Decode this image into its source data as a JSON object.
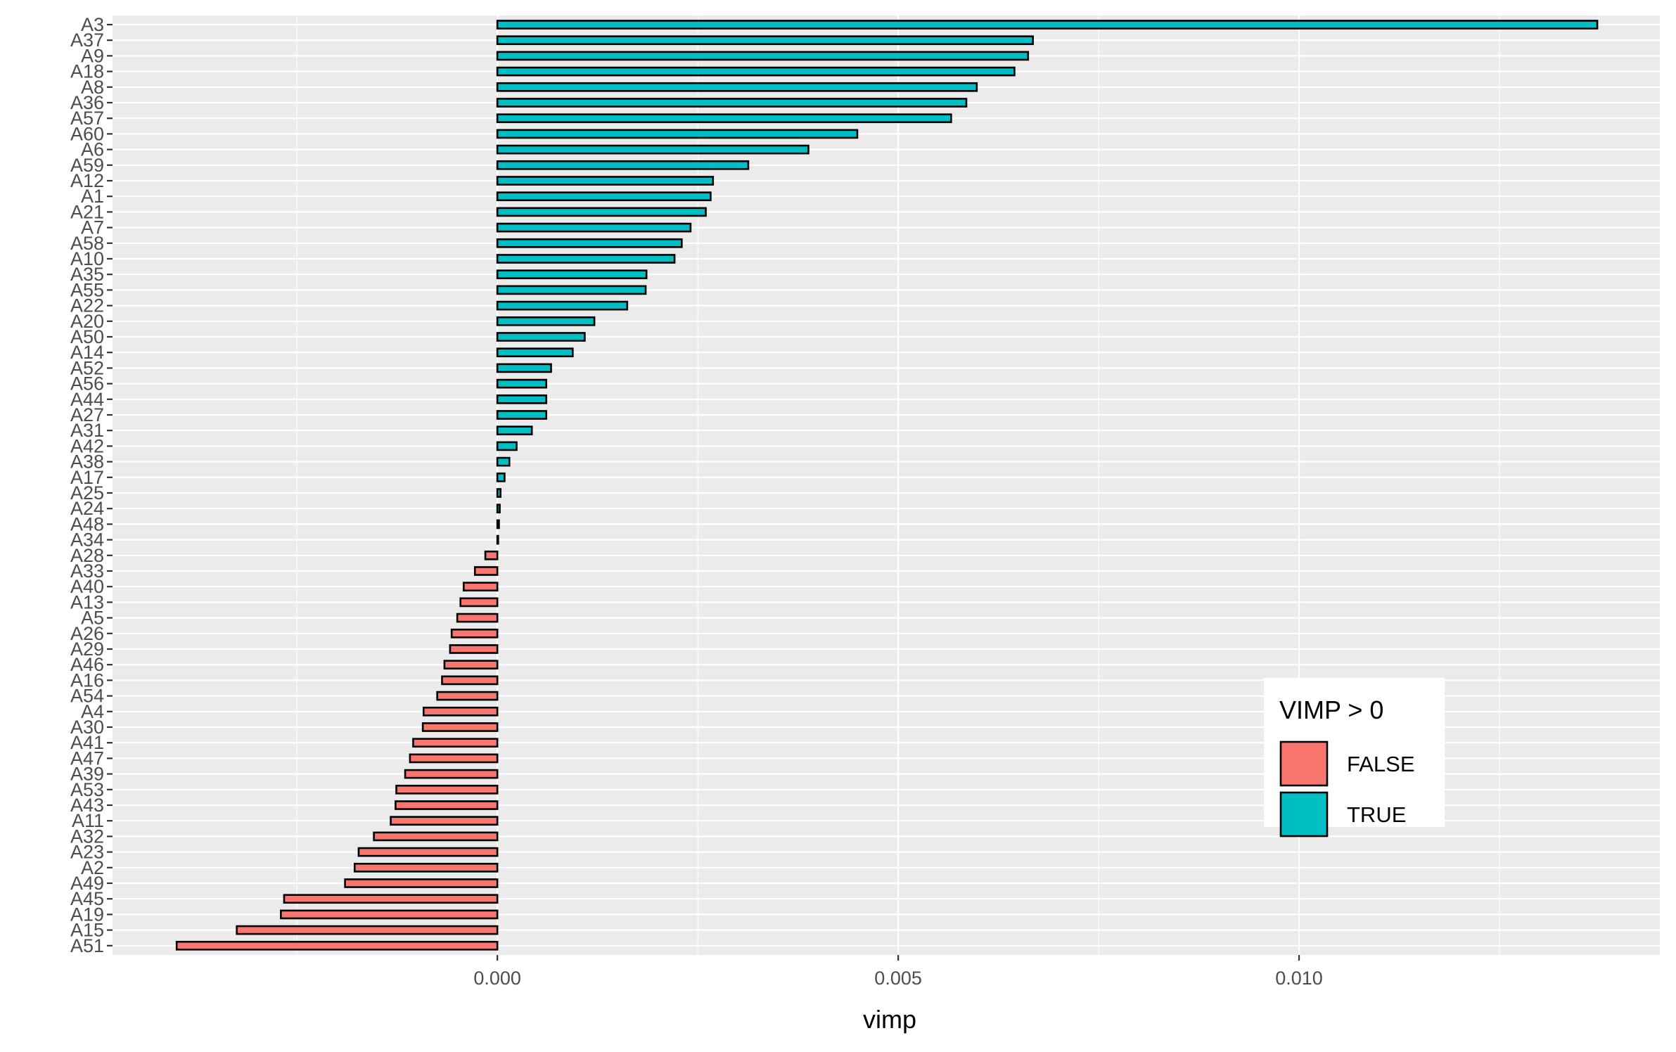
{
  "chart_data": {
    "type": "bar",
    "orientation": "horizontal",
    "categories": [
      "A3",
      "A37",
      "A9",
      "A18",
      "A8",
      "A36",
      "A57",
      "A60",
      "A6",
      "A59",
      "A12",
      "A1",
      "A21",
      "A7",
      "A58",
      "A10",
      "A35",
      "A55",
      "A22",
      "A20",
      "A50",
      "A14",
      "A52",
      "A56",
      "A44",
      "A27",
      "A31",
      "A42",
      "A38",
      "A17",
      "A25",
      "A24",
      "A48",
      "A34",
      "A28",
      "A33",
      "A40",
      "A13",
      "A5",
      "A26",
      "A29",
      "A46",
      "A16",
      "A54",
      "A4",
      "A30",
      "A41",
      "A47",
      "A39",
      "A53",
      "A43",
      "A11",
      "A32",
      "A23",
      "A2",
      "A49",
      "A45",
      "A19",
      "A15",
      "A51"
    ],
    "values": [
      0.01372,
      0.00668,
      0.00662,
      0.00645,
      0.00598,
      0.00585,
      0.00566,
      0.00449,
      0.00388,
      0.00313,
      0.00269,
      0.00266,
      0.0026,
      0.00241,
      0.0023,
      0.00221,
      0.00186,
      0.00185,
      0.00162,
      0.00121,
      0.00109,
      0.00094,
      0.00067,
      0.00061,
      0.00061,
      0.00061,
      0.00043,
      0.00024,
      0.00015,
      9e-05,
      4e-05,
      3e-05,
      2e-05,
      1e-05,
      -0.00015,
      -0.00028,
      -0.00042,
      -0.00046,
      -0.0005,
      -0.00057,
      -0.00059,
      -0.00066,
      -0.00069,
      -0.00075,
      -0.00092,
      -0.00093,
      -0.00105,
      -0.00109,
      -0.00115,
      -0.00126,
      -0.00127,
      -0.00133,
      -0.00154,
      -0.00173,
      -0.00178,
      -0.0019,
      -0.00266,
      -0.0027,
      -0.00325,
      -0.004
    ],
    "groups": [
      "TRUE",
      "TRUE",
      "TRUE",
      "TRUE",
      "TRUE",
      "TRUE",
      "TRUE",
      "TRUE",
      "TRUE",
      "TRUE",
      "TRUE",
      "TRUE",
      "TRUE",
      "TRUE",
      "TRUE",
      "TRUE",
      "TRUE",
      "TRUE",
      "TRUE",
      "TRUE",
      "TRUE",
      "TRUE",
      "TRUE",
      "TRUE",
      "TRUE",
      "TRUE",
      "TRUE",
      "TRUE",
      "TRUE",
      "TRUE",
      "TRUE",
      "TRUE",
      "TRUE",
      "TRUE",
      "FALSE",
      "FALSE",
      "FALSE",
      "FALSE",
      "FALSE",
      "FALSE",
      "FALSE",
      "FALSE",
      "FALSE",
      "FALSE",
      "FALSE",
      "FALSE",
      "FALSE",
      "FALSE",
      "FALSE",
      "FALSE",
      "FALSE",
      "FALSE",
      "FALSE",
      "FALSE",
      "FALSE",
      "FALSE",
      "FALSE",
      "FALSE",
      "FALSE",
      "FALSE"
    ],
    "xlabel": "vimp",
    "ylabel": "",
    "xlim": [
      -0.0048,
      0.0145
    ],
    "xticks": [
      0.0,
      0.005,
      0.01
    ],
    "xtick_labels": [
      "0.000",
      "0.005",
      "0.010"
    ],
    "grid": true,
    "legend": {
      "title": "VIMP > 0",
      "placement": "bottom-right",
      "entries": [
        {
          "label": "FALSE",
          "color": "#F8766D"
        },
        {
          "label": "TRUE",
          "color": "#00BFC4"
        }
      ]
    },
    "colors": {
      "panel_background": "#EBEBEB",
      "grid": "#FFFFFF",
      "bar_outline": "#000000",
      "FALSE": "#F8766D",
      "TRUE": "#00BFC4"
    }
  }
}
